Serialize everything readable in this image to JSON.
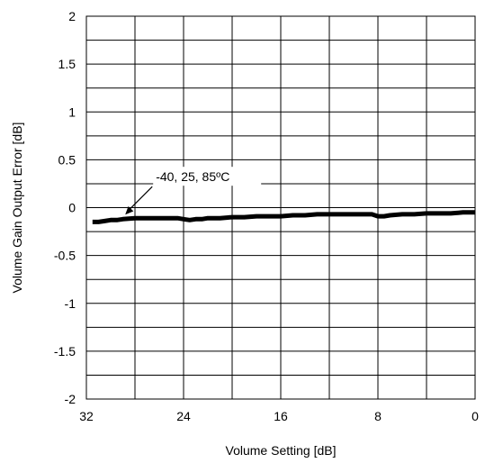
{
  "chart_data": {
    "type": "line",
    "title": "",
    "xlabel": "Volume Setting [dB]",
    "ylabel": "Volume Gain Output Error [dB]",
    "xlim": [
      32,
      0
    ],
    "ylim": [
      -2,
      2
    ],
    "x_ticks": [
      32,
      24,
      16,
      8,
      0
    ],
    "y_ticks": [
      2,
      1.5,
      1,
      0.5,
      0,
      -0.5,
      -1,
      -1.5,
      -2
    ],
    "x_tick_labels": [
      "32",
      "24",
      "16",
      "8",
      "0"
    ],
    "y_tick_labels": [
      "2",
      "1.5",
      "1",
      "0.5",
      "0",
      "-0.5",
      "-1",
      "-1.5",
      "-2"
    ],
    "grid": true,
    "grid_x_step": 4,
    "grid_y_step": 0.25,
    "annotation": {
      "text": "-40, 25, 85ºC",
      "x": 28.8,
      "y": -0.11
    },
    "series": [
      {
        "color": "#000000",
        "points": [
          [
            31.5,
            -0.15
          ],
          [
            31,
            -0.15
          ],
          [
            30.5,
            -0.14
          ],
          [
            30,
            -0.13
          ],
          [
            29.5,
            -0.13
          ],
          [
            29,
            -0.12
          ],
          [
            28,
            -0.11
          ],
          [
            27,
            -0.11
          ],
          [
            26,
            -0.11
          ],
          [
            25,
            -0.11
          ],
          [
            24.5,
            -0.11
          ],
          [
            24,
            -0.12
          ],
          [
            23.5,
            -0.13
          ],
          [
            23,
            -0.12
          ],
          [
            22.5,
            -0.12
          ],
          [
            22,
            -0.11
          ],
          [
            21,
            -0.11
          ],
          [
            20,
            -0.1
          ],
          [
            19,
            -0.1
          ],
          [
            18,
            -0.09
          ],
          [
            17,
            -0.09
          ],
          [
            16,
            -0.09
          ],
          [
            15,
            -0.08
          ],
          [
            14,
            -0.08
          ],
          [
            13,
            -0.07
          ],
          [
            12,
            -0.07
          ],
          [
            11,
            -0.07
          ],
          [
            10,
            -0.07
          ],
          [
            9,
            -0.07
          ],
          [
            8.5,
            -0.07
          ],
          [
            8,
            -0.09
          ],
          [
            7.5,
            -0.09
          ],
          [
            7,
            -0.08
          ],
          [
            6,
            -0.07
          ],
          [
            5,
            -0.07
          ],
          [
            4,
            -0.06
          ],
          [
            3,
            -0.06
          ],
          [
            2,
            -0.06
          ],
          [
            1,
            -0.05
          ],
          [
            0,
            -0.05
          ]
        ]
      }
    ]
  }
}
